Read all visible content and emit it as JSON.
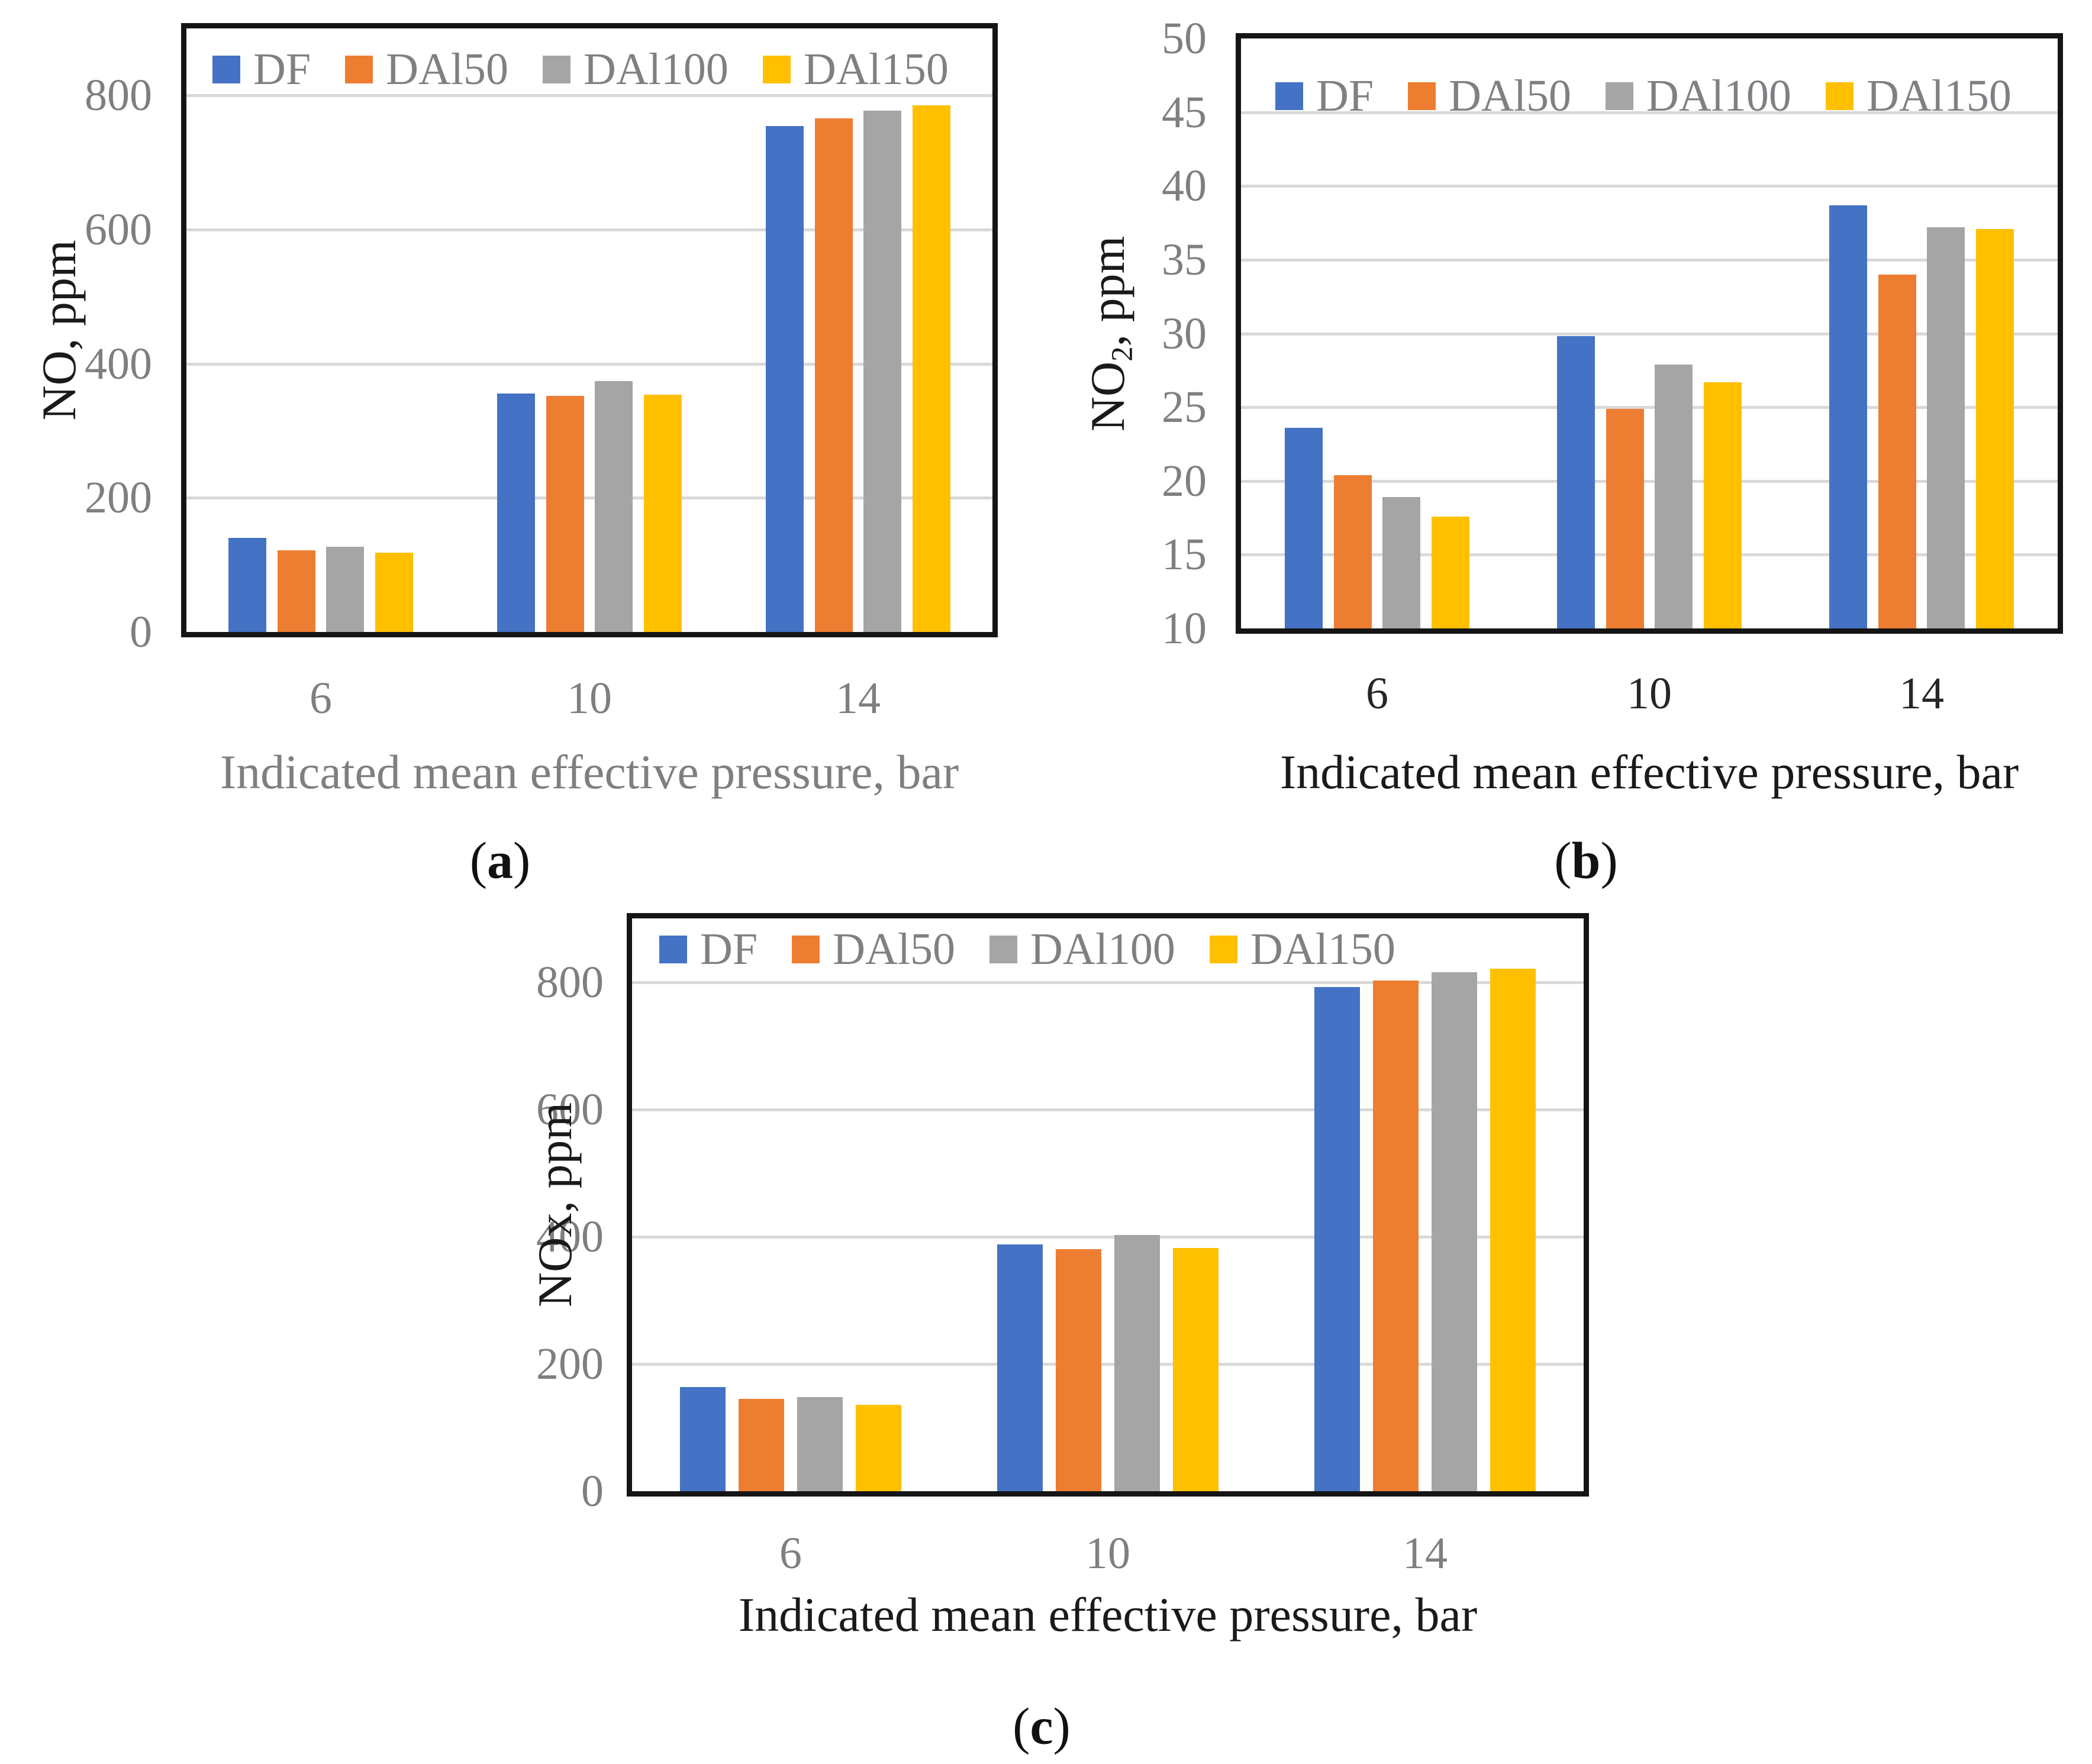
{
  "figure": {
    "description": "Three grouped bar chart panels of engine emissions versus indicated mean effective pressure",
    "panel_letters": [
      "a",
      "b",
      "c"
    ]
  },
  "colors": {
    "DF": "#4472C4",
    "DAl50": "#ED7D31",
    "DAl100": "#A5A5A5",
    "DAl150": "#FFC000",
    "gridline": "#D9D9D9",
    "plot_border": "#151515",
    "gray_text": "#7F7F7F",
    "black_text": "#1A1A1A"
  },
  "chart_data": [
    {
      "id": "a",
      "type": "bar",
      "title": "",
      "legend": [
        "DF",
        "DAl50",
        "DAl100",
        "DAl150"
      ],
      "legend_position": "top-inside",
      "grid": "horizontal",
      "y_axis": {
        "title_pre": "NO",
        "title_sub": "",
        "title_post": ", ppm",
        "ticks": [
          0,
          200,
          400,
          600,
          800
        ],
        "lim": [
          0,
          900
        ]
      },
      "x_axis": {
        "title": "Indicated mean effective pressure, bar",
        "categories": [
          "6",
          "10",
          "14"
        ]
      },
      "panel": {
        "open": "(",
        "letter": "a",
        "close": ")"
      },
      "series": [
        {
          "name": "DF",
          "values": [
            140,
            356,
            754
          ]
        },
        {
          "name": "DAl50",
          "values": [
            122,
            352,
            766
          ]
        },
        {
          "name": "DAl100",
          "values": [
            127,
            374,
            777
          ]
        },
        {
          "name": "DAl150",
          "values": [
            118,
            354,
            785
          ]
        }
      ],
      "styles": {
        "x_title_color": "#7F7F7F",
        "x_tick_color": "#7F7F7F"
      }
    },
    {
      "id": "b",
      "type": "bar",
      "title": "",
      "legend": [
        "DF",
        "DAl50",
        "DAl100",
        "DAl150"
      ],
      "legend_position": "top-inside",
      "grid": "horizontal",
      "y_axis": {
        "title_pre": "NO",
        "title_sub": "2",
        "title_post": ", ppm",
        "ticks": [
          10,
          15,
          20,
          25,
          30,
          35,
          40,
          45,
          50
        ],
        "lim": [
          10,
          50
        ]
      },
      "x_axis": {
        "title": "Indicated mean effective pressure, bar",
        "categories": [
          "6",
          "10",
          "14"
        ]
      },
      "panel": {
        "open": "(",
        "letter": "b",
        "close": ")"
      },
      "series": [
        {
          "name": "DF",
          "values": [
            23.6,
            29.8,
            38.7
          ]
        },
        {
          "name": "DAl50",
          "values": [
            20.4,
            24.9,
            34.0
          ]
        },
        {
          "name": "DAl100",
          "values": [
            18.9,
            27.9,
            37.2
          ]
        },
        {
          "name": "DAl150",
          "values": [
            17.6,
            26.7,
            37.1
          ]
        }
      ],
      "styles": {
        "x_title_color": "#1A1A1A",
        "x_tick_color": "#262626"
      }
    },
    {
      "id": "c",
      "type": "bar",
      "title": "",
      "legend": [
        "DF",
        "DAl50",
        "DAl100",
        "DAl150"
      ],
      "legend_position": "top-inside",
      "grid": "horizontal",
      "y_axis": {
        "title_pre": "NOx",
        "title_sub": "",
        "title_post": ", ppm",
        "ticks": [
          0,
          200,
          400,
          600,
          800
        ],
        "lim": [
          0,
          900
        ]
      },
      "x_axis": {
        "title": "Indicated mean effective pressure, bar",
        "categories": [
          "6",
          "10",
          "14"
        ]
      },
      "panel": {
        "open": "(",
        "letter": "c",
        "close": ")"
      },
      "series": [
        {
          "name": "DF",
          "values": [
            164,
            388,
            792
          ]
        },
        {
          "name": "DAl50",
          "values": [
            145,
            380,
            802
          ]
        },
        {
          "name": "DAl100",
          "values": [
            148,
            403,
            815
          ]
        },
        {
          "name": "DAl150",
          "values": [
            136,
            382,
            821
          ]
        }
      ],
      "styles": {
        "x_title_color": "#1A1A1A",
        "x_tick_color": "#7F7F7F"
      }
    }
  ]
}
